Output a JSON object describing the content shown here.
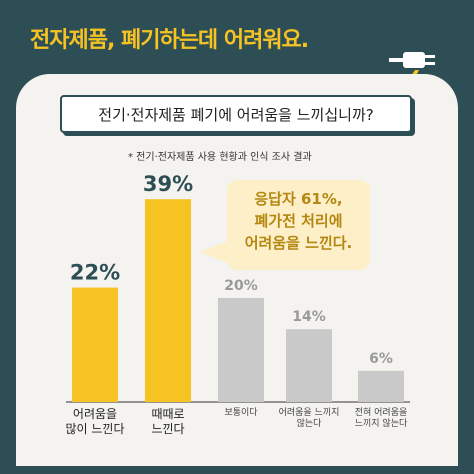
{
  "headline": "전자제품, 폐기하는데 어려워요.",
  "question": "전기·전자제품 폐기에 어려움을 느끼십니까?",
  "source": "* 전기·전자제품 사용 현황과 인식 조사 결과",
  "callout": "응답자 61%,\n폐가전 처리에\n어려움을 느낀다.",
  "colors": {
    "background": "#2e4e55",
    "highlight": "#f6c322",
    "muted": "#c9c9c9",
    "highlight_label": "#2e4e55",
    "muted_label": "#9a9a9a"
  },
  "chart_data": {
    "type": "bar",
    "categories": [
      "어려움을\n많이 느낀다",
      "때때로\n느낀다",
      "보통이다",
      "어려움을 느끼지\n않는다",
      "전혀 어려움을\n느끼지 않는다"
    ],
    "values": [
      22,
      39,
      20,
      14,
      6
    ],
    "value_labels": [
      "22%",
      "39%",
      "20%",
      "14%",
      "6%"
    ],
    "highlighted": [
      true,
      true,
      false,
      false,
      false
    ]
  }
}
